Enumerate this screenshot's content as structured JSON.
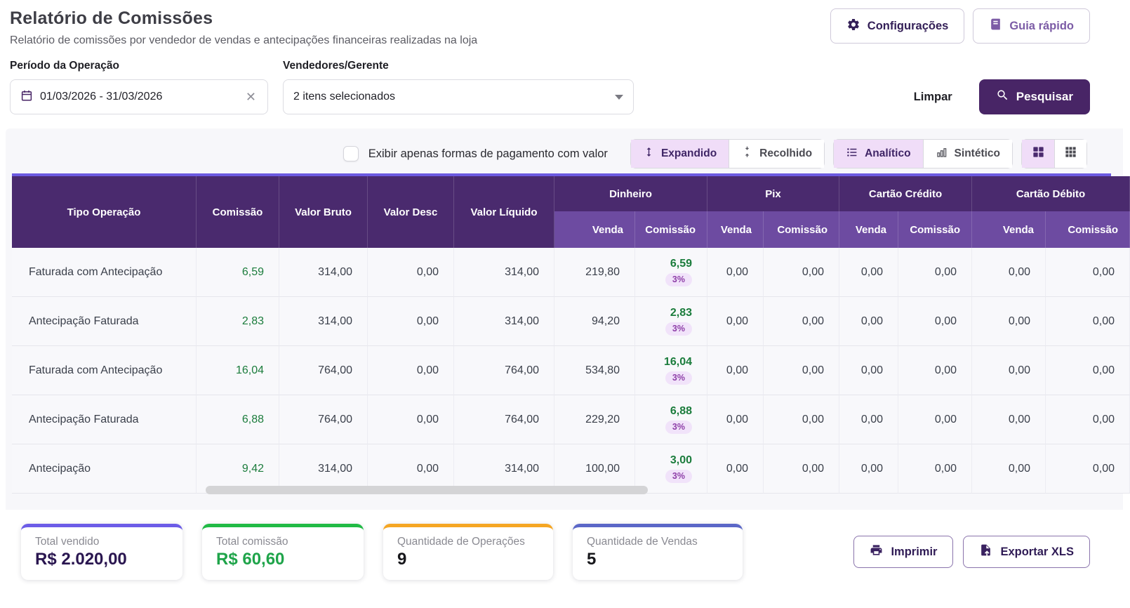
{
  "header": {
    "title": "Relatório de Comissões",
    "subtitle": "Relatório de comissões por vendedor de vendas e antecipações financeiras realizadas na loja",
    "settings_label": "Configurações",
    "guide_label": "Guia rápido"
  },
  "filters": {
    "period_label": "Período da Operação",
    "period_value": "01/03/2026 - 31/03/2026",
    "sellers_label": "Vendedores/Gerente",
    "sellers_value": "2 itens selecionados",
    "clear_label": "Limpar",
    "search_label": "Pesquisar"
  },
  "toolbar": {
    "checkbox_label": "Exibir apenas formas de pagamento com valor",
    "checkbox_checked": false,
    "expanded_label": "Expandido",
    "collapsed_label": "Recolhido",
    "analytic_label": "Analítico",
    "synthetic_label": "Sintético"
  },
  "table": {
    "columns": [
      "Tipo Operação",
      "Comissão",
      "Valor Bruto",
      "Valor Desc",
      "Valor Líquido"
    ],
    "groups": [
      "Dinheiro",
      "Pix",
      "Cartão Crédito",
      "Cartão Débito"
    ],
    "sub_venda": "Venda",
    "sub_comissao": "Comissão",
    "rows": [
      {
        "tipo": "Faturada com Antecipação",
        "comissao": "6,59",
        "valor_bruto": "314,00",
        "valor_desc": "0,00",
        "valor_liquido": "314,00",
        "dinheiro_venda": "219,80",
        "dinheiro_comissao": "6,59",
        "dinheiro_pct": "3%",
        "pix_venda": "0,00",
        "pix_comissao": "0,00",
        "cartao_credito_venda": "0,00",
        "cartao_credito_comissao": "0,00",
        "cartao_debito_venda": "0,00",
        "cartao_debito_comissao": "0,00"
      },
      {
        "tipo": "Antecipação Faturada",
        "comissao": "2,83",
        "valor_bruto": "314,00",
        "valor_desc": "0,00",
        "valor_liquido": "314,00",
        "dinheiro_venda": "94,20",
        "dinheiro_comissao": "2,83",
        "dinheiro_pct": "3%",
        "pix_venda": "0,00",
        "pix_comissao": "0,00",
        "cartao_credito_venda": "0,00",
        "cartao_credito_comissao": "0,00",
        "cartao_debito_venda": "0,00",
        "cartao_debito_comissao": "0,00"
      },
      {
        "tipo": "Faturada com Antecipação",
        "comissao": "16,04",
        "valor_bruto": "764,00",
        "valor_desc": "0,00",
        "valor_liquido": "764,00",
        "dinheiro_venda": "534,80",
        "dinheiro_comissao": "16,04",
        "dinheiro_pct": "3%",
        "pix_venda": "0,00",
        "pix_comissao": "0,00",
        "cartao_credito_venda": "0,00",
        "cartao_credito_comissao": "0,00",
        "cartao_debito_venda": "0,00",
        "cartao_debito_comissao": "0,00"
      },
      {
        "tipo": "Antecipação Faturada",
        "comissao": "6,88",
        "valor_bruto": "764,00",
        "valor_desc": "0,00",
        "valor_liquido": "764,00",
        "dinheiro_venda": "229,20",
        "dinheiro_comissao": "6,88",
        "dinheiro_pct": "3%",
        "pix_venda": "0,00",
        "pix_comissao": "0,00",
        "cartao_credito_venda": "0,00",
        "cartao_credito_comissao": "0,00",
        "cartao_debito_venda": "0,00",
        "cartao_debito_comissao": "0,00"
      },
      {
        "tipo": "Antecipação",
        "comissao": "9,42",
        "valor_bruto": "314,00",
        "valor_desc": "0,00",
        "valor_liquido": "314,00",
        "dinheiro_venda": "100,00",
        "dinheiro_comissao": "3,00",
        "dinheiro_pct": "3%",
        "pix_venda": "0,00",
        "pix_comissao": "0,00",
        "cartao_credito_venda": "0,00",
        "cartao_credito_comissao": "0,00",
        "cartao_debito_venda": "0,00",
        "cartao_debito_comissao": "0,00"
      }
    ]
  },
  "summary_cards": [
    {
      "label": "Total vendido",
      "value": "R$ 2.020,00",
      "accent": "#6c5ce7",
      "value_color": "#2a1650"
    },
    {
      "label": "Total comissão",
      "value": "R$ 60,60",
      "accent": "#21ba45",
      "value_color": "#1fa44a"
    },
    {
      "label": "Quantidade de Operações",
      "value": "9",
      "accent": "#f5a623",
      "value_color": "#17171b"
    },
    {
      "label": "Quantidade de Vendas",
      "value": "5",
      "accent": "#5b67c7",
      "value_color": "#17171b"
    }
  ],
  "actions": {
    "print_label": "Imprimir",
    "export_label": "Exportar XLS"
  }
}
